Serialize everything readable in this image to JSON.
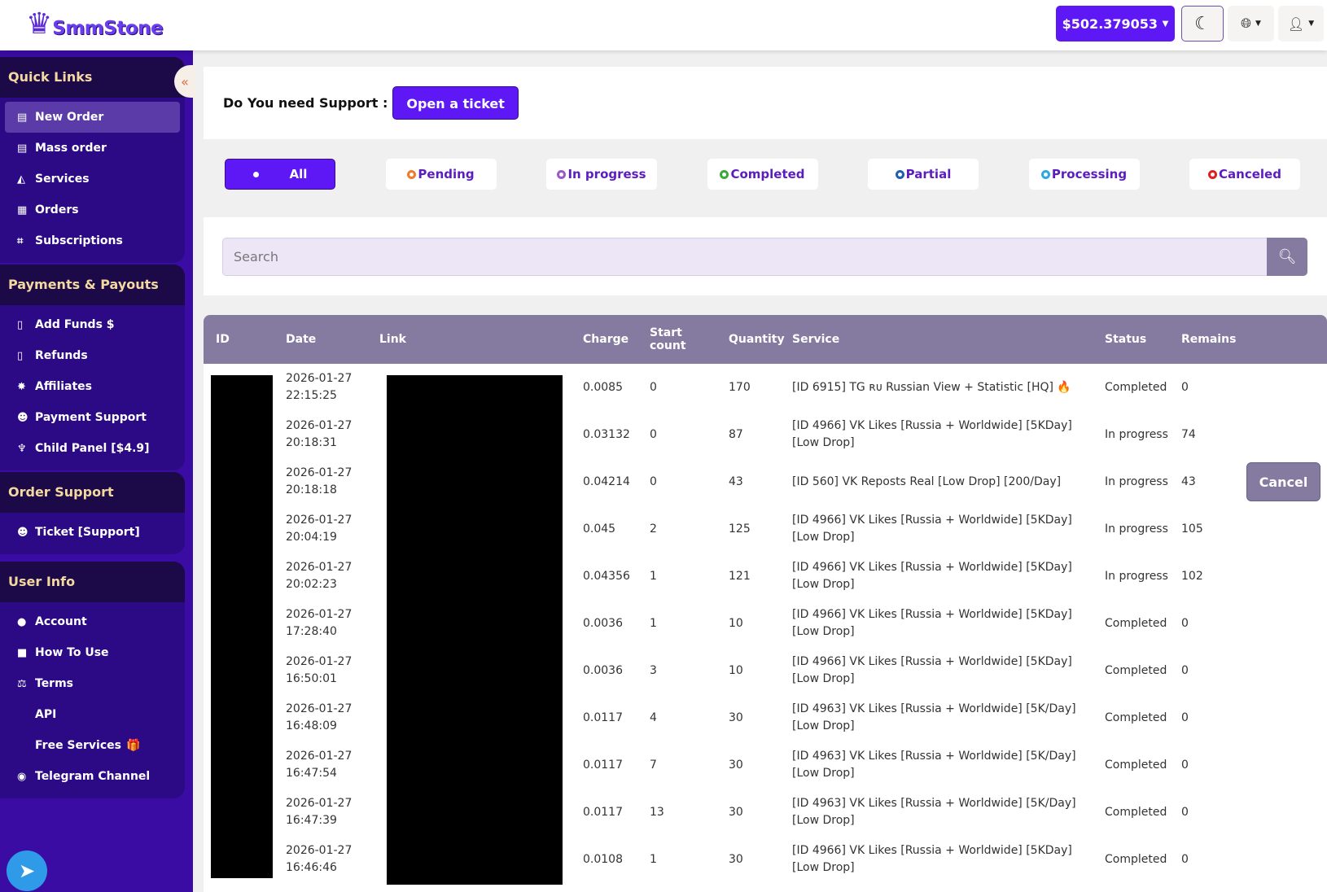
{
  "brand": {
    "name": "SmmStone"
  },
  "header": {
    "balance": "$502.379053",
    "theme_icon": "moon-icon",
    "lang_icon": "globe-icon",
    "user_icon": "user-icon"
  },
  "sidebar": {
    "sections": [
      {
        "title": "Quick Links",
        "items": [
          {
            "label": "New Order",
            "icon": "newspaper-icon",
            "active": true
          },
          {
            "label": "Mass order",
            "icon": "newspaper-icon"
          },
          {
            "label": "Services",
            "icon": "services-icon"
          },
          {
            "label": "Orders",
            "icon": "orders-icon"
          },
          {
            "label": "Subscriptions",
            "icon": "crop-icon"
          }
        ]
      },
      {
        "title": "Payments & Payouts",
        "items": [
          {
            "label": "Add Funds $",
            "icon": "file-dollar-icon"
          },
          {
            "label": "Refunds",
            "icon": "file-icon"
          },
          {
            "label": "Affiliates",
            "icon": "badge-icon"
          },
          {
            "label": "Payment Support",
            "icon": "support-icon"
          },
          {
            "label": "Child Panel [$4.9]",
            "icon": "child-icon"
          }
        ]
      },
      {
        "title": "Order Support",
        "items": [
          {
            "label": "Ticket [Support]",
            "icon": "support-icon"
          }
        ]
      },
      {
        "title": "User Info",
        "items": [
          {
            "label": "Account",
            "icon": "user-icon"
          },
          {
            "label": "How To Use",
            "icon": "video-icon"
          },
          {
            "label": "Terms",
            "icon": "scale-icon"
          },
          {
            "label": "API",
            "icon": "code-icon"
          },
          {
            "label": "Free Services",
            "icon": "gift-icon"
          },
          {
            "label": "Telegram Channel",
            "icon": "telegram-icon"
          }
        ]
      }
    ]
  },
  "support": {
    "question": "Do You need Support :",
    "button": "Open a ticket"
  },
  "filters": [
    {
      "label": "All",
      "color": "#2f6fe0",
      "active": true
    },
    {
      "label": "Pending",
      "color": "#f07a2a"
    },
    {
      "label": "In progress",
      "color": "#9b59c8"
    },
    {
      "label": "Completed",
      "color": "#3aa83a"
    },
    {
      "label": "Partial",
      "color": "#1f5fb0"
    },
    {
      "label": "Processing",
      "color": "#2ea8e0"
    },
    {
      "label": "Canceled",
      "color": "#e02020"
    }
  ],
  "search": {
    "placeholder": "Search"
  },
  "table": {
    "columns": [
      "ID",
      "Date",
      "Link",
      "Charge",
      "Start count",
      "Quantity",
      "Service",
      "Status",
      "Remains"
    ],
    "cancel_label": "Cancel",
    "rows": [
      {
        "date": "2026-01-27",
        "time": "22:15:25",
        "charge": "0.0085",
        "start": "0",
        "qty": "170",
        "service": "[ID 6915] TG ʀᴜ Russian View + Statistic [HQ] 🔥",
        "status": "Completed",
        "remains": "0"
      },
      {
        "date": "2026-01-27",
        "time": "20:18:31",
        "charge": "0.03132",
        "start": "0",
        "qty": "87",
        "service": "[ID 4966] VK Likes [Russia + Worldwide] [5KDay] [Low Drop]",
        "status": "In progress",
        "remains": "74"
      },
      {
        "date": "2026-01-27",
        "time": "20:18:18",
        "charge": "0.04214",
        "start": "0",
        "qty": "43",
        "service": "[ID 560] VK Reposts Real [Low Drop] [200/Day]",
        "status": "In progress",
        "remains": "43",
        "cancel": true
      },
      {
        "date": "2026-01-27",
        "time": "20:04:19",
        "charge": "0.045",
        "start": "2",
        "qty": "125",
        "service": "[ID 4966] VK Likes [Russia + Worldwide] [5KDay] [Low Drop]",
        "status": "In progress",
        "remains": "105"
      },
      {
        "date": "2026-01-27",
        "time": "20:02:23",
        "charge": "0.04356",
        "start": "1",
        "qty": "121",
        "service": "[ID 4966] VK Likes [Russia + Worldwide] [5KDay] [Low Drop]",
        "status": "In progress",
        "remains": "102"
      },
      {
        "date": "2026-01-27",
        "time": "17:28:40",
        "charge": "0.0036",
        "start": "1",
        "qty": "10",
        "service": "[ID 4966] VK Likes [Russia + Worldwide] [5KDay] [Low Drop]",
        "status": "Completed",
        "remains": "0"
      },
      {
        "date": "2026-01-27",
        "time": "16:50:01",
        "charge": "0.0036",
        "start": "3",
        "qty": "10",
        "service": "[ID 4966] VK Likes [Russia + Worldwide] [5KDay] [Low Drop]",
        "status": "Completed",
        "remains": "0"
      },
      {
        "date": "2026-01-27",
        "time": "16:48:09",
        "charge": "0.0117",
        "start": "4",
        "qty": "30",
        "service": "[ID 4963] VK Likes [Russia + Worldwide] [5K/Day] [Low Drop]",
        "status": "Completed",
        "remains": "0"
      },
      {
        "date": "2026-01-27",
        "time": "16:47:54",
        "charge": "0.0117",
        "start": "7",
        "qty": "30",
        "service": "[ID 4963] VK Likes [Russia + Worldwide] [5K/Day] [Low Drop]",
        "status": "Completed",
        "remains": "0"
      },
      {
        "date": "2026-01-27",
        "time": "16:47:39",
        "charge": "0.0117",
        "start": "13",
        "qty": "30",
        "service": "[ID 4963] VK Likes [Russia + Worldwide] [5K/Day] [Low Drop]",
        "status": "Completed",
        "remains": "0"
      },
      {
        "date": "2026-01-27",
        "time": "16:46:46",
        "charge": "0.0108",
        "start": "1",
        "qty": "30",
        "service": "[ID 4966] VK Likes [Russia + Worldwide] [5KDay] [Low Drop]",
        "status": "Completed",
        "remains": "0"
      }
    ]
  }
}
